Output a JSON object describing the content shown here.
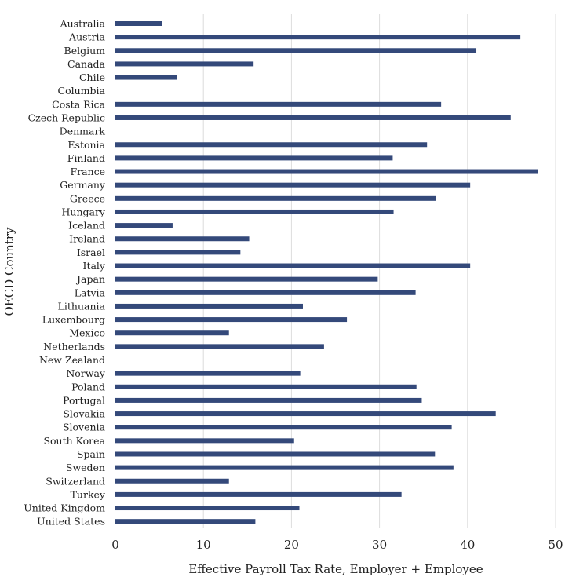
{
  "chart_data": {
    "type": "bar",
    "orientation": "horizontal",
    "ylabel": "OECD Country",
    "xlabel": "Effective Payroll Tax Rate, Employer + Employee",
    "xlim": [
      0,
      50
    ],
    "xticks": [
      "0",
      "10",
      "20",
      "30",
      "40",
      "50"
    ],
    "grid": "vertical",
    "bar_color": "#34497a",
    "categories": [
      "Australia",
      "Austria",
      "Belgium",
      "Canada",
      "Chile",
      "Columbia",
      "Costa Rica",
      "Czech Republic",
      "Denmark",
      "Estonia",
      "Finland",
      "France",
      "Germany",
      "Greece",
      "Hungary",
      "Iceland",
      "Ireland",
      "Israel",
      "Italy",
      "Japan",
      "Latvia",
      "Lithuania",
      "Luxembourg",
      "Mexico",
      "Netherlands",
      "New Zealand",
      "Norway",
      "Poland",
      "Portugal",
      "Slovakia",
      "Slovenia",
      "South Korea",
      "Spain",
      "Sweden",
      "Switzerland",
      "Turkey",
      "United Kingdom",
      "United States"
    ],
    "values": [
      5.3,
      46.0,
      41.0,
      15.7,
      7.0,
      0,
      37.0,
      44.9,
      0,
      35.4,
      31.5,
      48.0,
      40.3,
      36.4,
      31.6,
      6.5,
      15.2,
      14.2,
      40.3,
      29.8,
      34.1,
      21.3,
      26.3,
      12.9,
      23.7,
      0,
      21.0,
      34.2,
      34.8,
      43.2,
      38.2,
      20.3,
      36.3,
      38.4,
      12.9,
      32.5,
      20.9,
      15.9
    ]
  }
}
